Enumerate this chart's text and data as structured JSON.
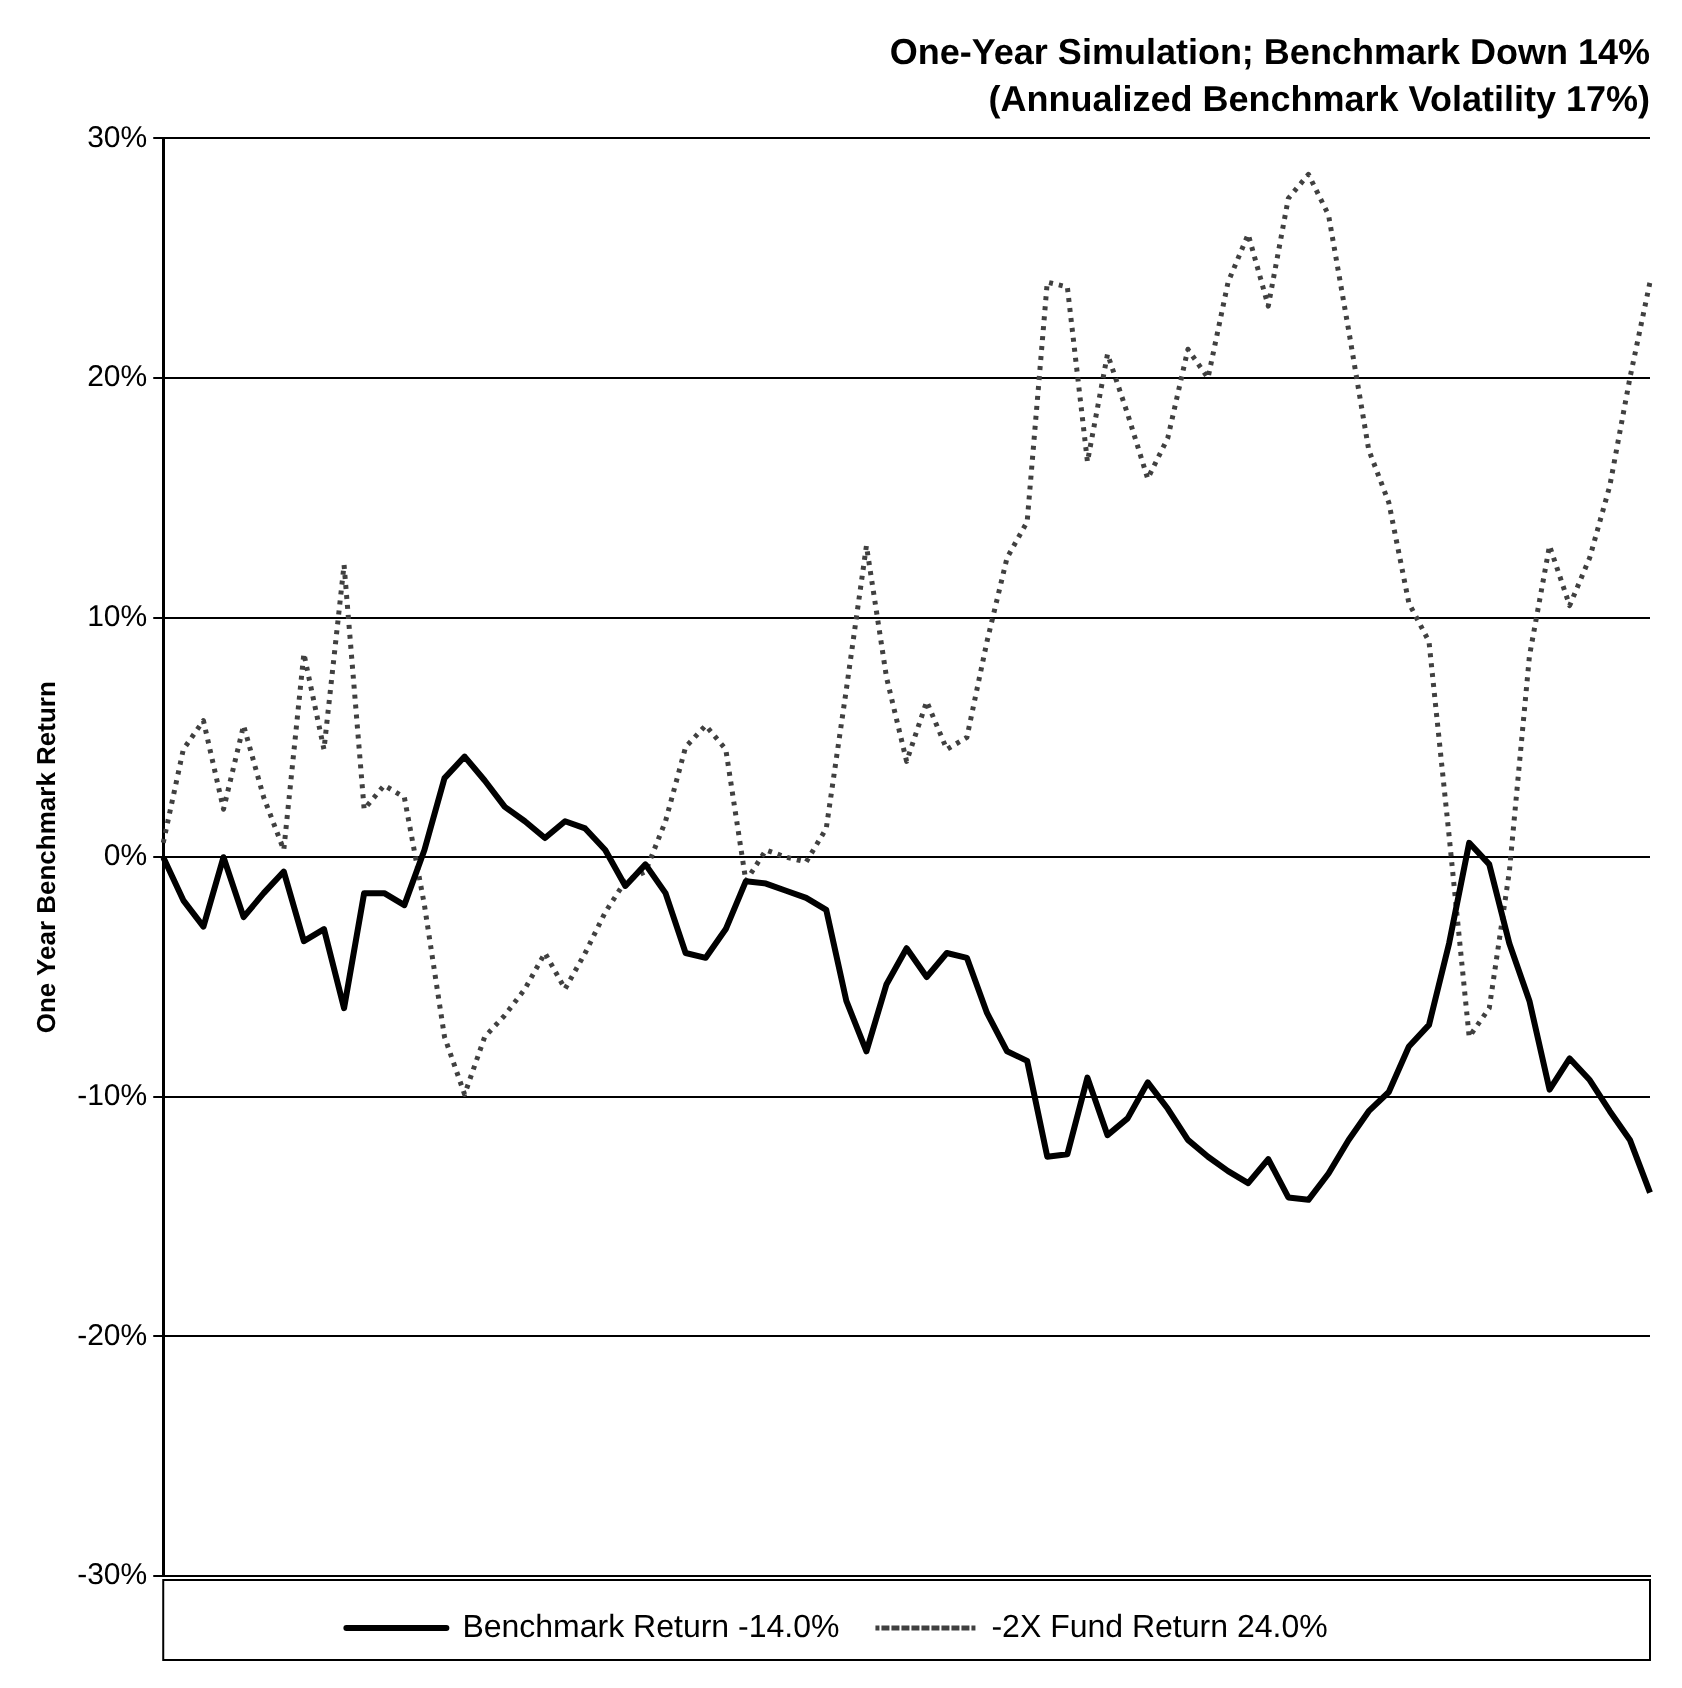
{
  "chart_data": {
    "type": "line",
    "title": "One-Year Simulation; Benchmark Down 14%",
    "subtitle": "(Annualized Benchmark Volatility 17%)",
    "ylabel": "One Year Benchmark Return",
    "categories": [
      null,
      null,
      null,
      null,
      null,
      null,
      null,
      null,
      null,
      null,
      null,
      null,
      null,
      null,
      null,
      null,
      null,
      null,
      null,
      null,
      null,
      null,
      null,
      null,
      null,
      null,
      null,
      null,
      null,
      null,
      null,
      null,
      null,
      null,
      null,
      null,
      null,
      null,
      null,
      null,
      null,
      null,
      null,
      null,
      null,
      null,
      null,
      null,
      null,
      null,
      null,
      null,
      null,
      null,
      null,
      null,
      null,
      null,
      null,
      null,
      null,
      null,
      null,
      null,
      null,
      null,
      null,
      null,
      null,
      null,
      null,
      null,
      null,
      null,
      null
    ],
    "series": [
      {
        "name": "Benchmark Return -14.0%",
        "color": "#000000",
        "line_style": "solid",
        "values": [
          0,
          -1.8,
          -2.9,
          0,
          -2.5,
          -1.5,
          -0.6,
          -3.5,
          -3,
          -6.3,
          -1.5,
          -1.5,
          -2,
          0.3,
          3.3,
          4.2,
          3.2,
          2.1,
          1.5,
          0.8,
          1.5,
          1.2,
          0.3,
          -1.2,
          -0.3,
          -1.5,
          -4,
          -4.2,
          -3,
          -1,
          -1.1,
          -1.4,
          -1.7,
          -2.2,
          -6,
          -8.1,
          -5.3,
          -3.8,
          -5,
          -4,
          -4.2,
          -6.5,
          -8.1,
          -8.5,
          -12.5,
          -12.4,
          -9.2,
          -11.6,
          -10.9,
          -9.4,
          -10.5,
          -11.8,
          -12.5,
          -13.1,
          -13.6,
          -12.6,
          -14.2,
          -14.3,
          -13.2,
          -11.8,
          -10.6,
          -9.8,
          -7.9,
          -7,
          -3.6,
          0.6,
          -0.3,
          -3.6,
          -6,
          -9.7,
          -8.4,
          -9.3,
          -10.6,
          -11.8,
          -14
        ]
      },
      {
        "name": "-2X Fund Return 24.0%",
        "color": "#404040",
        "line_style": "dotted",
        "values": [
          0.6,
          4.5,
          5.7,
          2,
          5.5,
          2.5,
          0.3,
          8.5,
          4.5,
          12.2,
          2,
          3,
          2.5,
          -2,
          -7.5,
          -9.9,
          -7.5,
          -6.6,
          -5.5,
          -4,
          -5.5,
          -4,
          -2.3,
          -1,
          -0.6,
          1.5,
          4.6,
          5.5,
          4.5,
          -1,
          0.3,
          0,
          -0.2,
          1.2,
          7,
          13,
          7.5,
          4,
          6.5,
          4.5,
          5,
          9,
          12.5,
          14,
          24,
          23.8,
          16.5,
          21,
          18.5,
          15.8,
          17.5,
          21.2,
          20,
          24,
          26,
          23,
          27.5,
          28.5,
          26.8,
          22,
          17,
          14.8,
          10.6,
          9,
          0.9,
          -7.5,
          -6.3,
          -0.6,
          8.4,
          13,
          10.5,
          12.5,
          15.5,
          20,
          24
        ]
      }
    ],
    "ylim": [
      -30,
      30
    ],
    "yticks": [
      {
        "value": -30,
        "label": "-30%"
      },
      {
        "value": -20,
        "label": "-20%"
      },
      {
        "value": -10,
        "label": "-10%"
      },
      {
        "value": 0,
        "label": "0%"
      },
      {
        "value": 10,
        "label": "10%"
      },
      {
        "value": 20,
        "label": "20%"
      },
      {
        "value": 30,
        "label": "30%"
      }
    ],
    "grid": "y",
    "legend": "bottom",
    "tick_labels": "y",
    "marker": "none"
  }
}
